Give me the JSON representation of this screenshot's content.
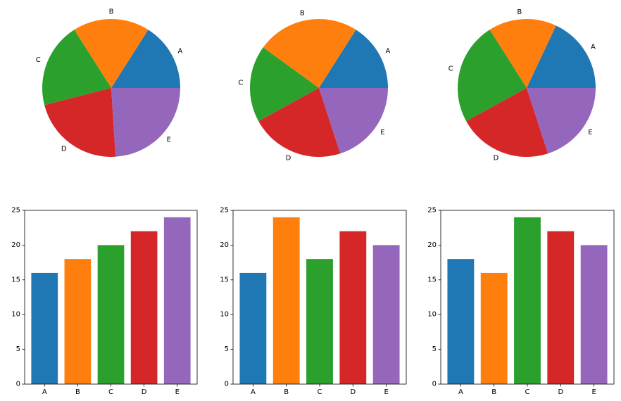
{
  "chart_data": [
    {
      "type": "pie",
      "categories": [
        "A",
        "B",
        "C",
        "D",
        "E"
      ],
      "values": [
        16,
        18,
        20,
        22,
        24
      ]
    },
    {
      "type": "pie",
      "categories": [
        "A",
        "B",
        "C",
        "D",
        "E"
      ],
      "values": [
        16,
        24,
        18,
        22,
        20
      ]
    },
    {
      "type": "pie",
      "categories": [
        "A",
        "B",
        "C",
        "D",
        "E"
      ],
      "values": [
        18,
        16,
        24,
        22,
        20
      ]
    },
    {
      "type": "bar",
      "categories": [
        "A",
        "B",
        "C",
        "D",
        "E"
      ],
      "values": [
        16,
        18,
        20,
        22,
        24
      ],
      "ylim": [
        0,
        25
      ],
      "yticks": [
        0,
        5,
        10,
        15,
        20,
        25
      ],
      "grid": false
    },
    {
      "type": "bar",
      "categories": [
        "A",
        "B",
        "C",
        "D",
        "E"
      ],
      "values": [
        16,
        24,
        18,
        22,
        20
      ],
      "ylim": [
        0,
        25
      ],
      "yticks": [
        0,
        5,
        10,
        15,
        20,
        25
      ],
      "grid": false
    },
    {
      "type": "bar",
      "categories": [
        "A",
        "B",
        "C",
        "D",
        "E"
      ],
      "values": [
        18,
        16,
        24,
        22,
        20
      ],
      "ylim": [
        0,
        25
      ],
      "yticks": [
        0,
        5,
        10,
        15,
        20,
        25
      ],
      "grid": false
    }
  ],
  "colors": [
    "#1f77b4",
    "#ff7f0e",
    "#2ca02c",
    "#d62728",
    "#9467bd"
  ]
}
